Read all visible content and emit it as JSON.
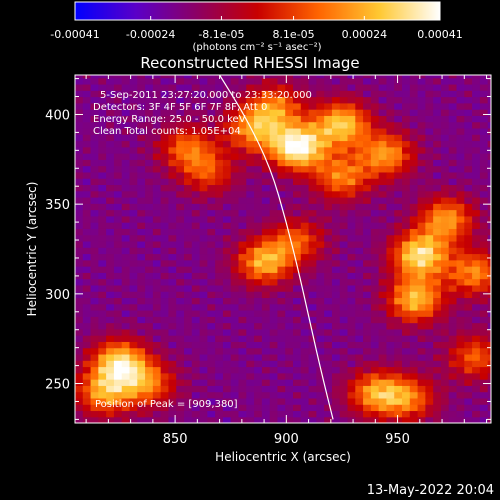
{
  "chart_data": {
    "type": "heatmap",
    "title": "Reconstructed RHESSI Image",
    "xlabel": "Heliocentric X (arcsec)",
    "ylabel": "Heliocentric Y (arcsec)",
    "xlim": [
      805,
      992
    ],
    "ylim": [
      228,
      422
    ],
    "xticks": [
      "850",
      "900",
      "950"
    ],
    "xtick_values": [
      850,
      900,
      950
    ],
    "yticks": [
      "250",
      "300",
      "350",
      "400"
    ],
    "ytick_values": [
      250,
      300,
      350,
      400
    ],
    "colorbar": {
      "min": -0.00041,
      "max": 0.00041,
      "tick_labels": [
        "-0.00041",
        "-0.00024",
        "-8.1e-05",
        "8.1e-05",
        "0.00024",
        "0.00041"
      ],
      "tick_values": [
        -0.00041,
        -0.00024,
        -8.1e-05,
        8.1e-05,
        0.00024,
        0.00041
      ],
      "units_label": "(photons cm⁻² s⁻¹ asec⁻²)",
      "colors": [
        "#0000ff",
        "#5a00c8",
        "#8c0064",
        "#c80000",
        "#ff6400",
        "#ffc832",
        "#ffffff"
      ]
    },
    "annotations": {
      "time": "5-Sep-2011 23:27:20.000 to 23:33:20.000",
      "detectors": "Detectors: 3F 4F 5F 6F 7F 8F, Att 0",
      "energy": "Energy Range: 25.0 - 50.0 keV",
      "clean": "Clean     Total counts: 1.05E+04",
      "peak": "Position of Peak = [909,380]"
    },
    "sources": [
      {
        "x": 905,
        "y": 382,
        "amplitude": 0.00041
      },
      {
        "x": 925,
        "y": 395,
        "amplitude": 0.00028
      },
      {
        "x": 885,
        "y": 392,
        "amplitude": 0.00018
      },
      {
        "x": 895,
        "y": 405,
        "amplitude": 0.00014
      },
      {
        "x": 960,
        "y": 322,
        "amplitude": 0.00033
      },
      {
        "x": 958,
        "y": 297,
        "amplitude": 0.00026
      },
      {
        "x": 972,
        "y": 342,
        "amplitude": 0.0002
      },
      {
        "x": 985,
        "y": 312,
        "amplitude": 0.00018
      },
      {
        "x": 925,
        "y": 365,
        "amplitude": 0.00016
      },
      {
        "x": 945,
        "y": 378,
        "amplitude": 0.0002
      },
      {
        "x": 890,
        "y": 318,
        "amplitude": 0.00024
      },
      {
        "x": 905,
        "y": 330,
        "amplitude": 0.0001
      },
      {
        "x": 825,
        "y": 262,
        "amplitude": 0.0003
      },
      {
        "x": 818,
        "y": 245,
        "amplitude": 0.0002
      },
      {
        "x": 838,
        "y": 250,
        "amplitude": 0.00014
      },
      {
        "x": 940,
        "y": 245,
        "amplitude": 0.0002
      },
      {
        "x": 955,
        "y": 242,
        "amplitude": 0.00014
      },
      {
        "x": 985,
        "y": 265,
        "amplitude": 0.00012
      },
      {
        "x": 855,
        "y": 382,
        "amplitude": 0.00012
      },
      {
        "x": 865,
        "y": 368,
        "amplitude": 8e-05
      }
    ],
    "background": -0.000175,
    "limb_curve": [
      [
        870,
        422
      ],
      [
        882,
        398
      ],
      [
        893,
        370
      ],
      [
        900,
        340
      ],
      [
        906,
        310
      ],
      [
        911,
        282
      ],
      [
        916,
        255
      ],
      [
        921,
        230
      ]
    ]
  },
  "footer": {
    "timestamp": "13-May-2022 20:04"
  }
}
